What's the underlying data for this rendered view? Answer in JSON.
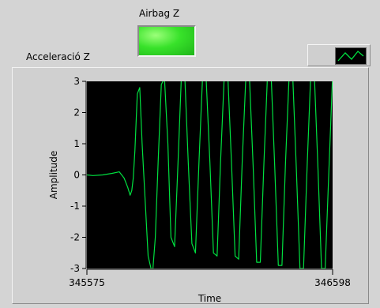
{
  "indicator": {
    "label": "Airbag Z",
    "led_color": "#38e22a",
    "state": "on"
  },
  "graph": {
    "label": "Acceleració Z",
    "plot_legend_icon": "waveform-line-icon",
    "trace_color": "#00e040",
    "background_color": "#000000"
  },
  "chart_data": {
    "type": "line",
    "title": "",
    "xlabel": "Time",
    "ylabel": "Amplitude",
    "xlim": [
      345575,
      346598
    ],
    "ylim": [
      -3,
      3
    ],
    "x_ticks": [
      345575,
      346598
    ],
    "y_ticks": [
      3,
      2,
      1,
      0,
      -1,
      -2,
      -3
    ],
    "grid": false,
    "series": [
      {
        "x": [
          345575,
          345600,
          345640,
          345680,
          345710,
          345730,
          345745,
          345755,
          345762,
          345768,
          345775,
          345785,
          345795,
          345805,
          345830,
          345848,
          345860,
          345872,
          345885,
          345898,
          345912,
          345925,
          345940,
          345955,
          345968,
          345983,
          345997,
          346012,
          346027,
          346042,
          346057,
          346072,
          346087,
          346102,
          346117,
          346132,
          346147,
          346162,
          346177,
          346192,
          346207,
          346222,
          346237,
          346252,
          346267,
          346282,
          346297,
          346312,
          346327,
          346342,
          346357,
          346372,
          346387,
          346402,
          346417,
          346432,
          346447,
          346462,
          346477,
          346492,
          346507,
          346522,
          346537,
          346552,
          346567,
          346582,
          346598
        ],
        "y": [
          0.0,
          -0.02,
          0.0,
          0.05,
          0.1,
          -0.1,
          -0.4,
          -0.65,
          -0.5,
          -0.1,
          0.8,
          2.6,
          2.8,
          1.0,
          -2.6,
          -3.2,
          -2.0,
          0.5,
          2.9,
          3.1,
          1.0,
          -2.0,
          -2.3,
          0.5,
          3.1,
          3.1,
          0.4,
          -2.2,
          -2.5,
          0.5,
          3.2,
          3.0,
          0.4,
          -2.5,
          -2.6,
          0.5,
          3.2,
          3.1,
          0.4,
          -2.6,
          -2.7,
          0.5,
          3.2,
          3.1,
          0.3,
          -2.8,
          -2.8,
          0.4,
          3.2,
          3.2,
          0.3,
          -2.9,
          -2.9,
          0.4,
          3.2,
          3.2,
          0.2,
          -3.0,
          -3.0,
          0.3,
          3.2,
          3.2,
          0.2,
          -3.0,
          -3.0,
          0.0,
          3.2
        ]
      }
    ]
  }
}
